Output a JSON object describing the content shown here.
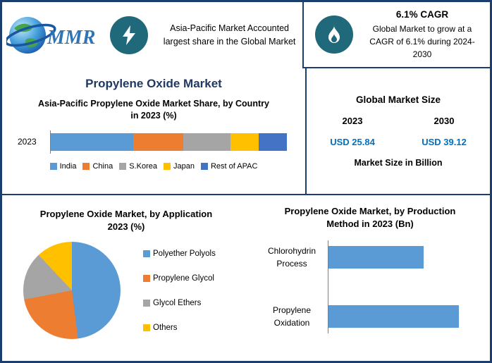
{
  "colors": {
    "border_navy": "#1c3e6e",
    "title_navy": "#1f3864",
    "icon_teal": "#20697a",
    "value_blue": "#0070c0"
  },
  "header": {
    "logo_text": "MMR",
    "highlight_text": "Asia-Pacific Market Accounted largest share in the Global Market",
    "cagr_title": "6.1% CAGR",
    "cagr_text": "Global Market to grow at a CAGR of 6.1% during 2024-2030"
  },
  "title": "Propylene Oxide Market",
  "market_size": {
    "title": "Global Market Size",
    "years": [
      "2023",
      "2030"
    ],
    "values": [
      "USD 25.84",
      "USD 39.12"
    ],
    "unit_label": "Market Size in Billion"
  },
  "chart_data": [
    {
      "type": "bar",
      "subtype": "stacked-horizontal",
      "title": "Asia-Pacific Propylene Oxide Market Share, by Country in 2023 (%)",
      "categories": [
        "2023"
      ],
      "series": [
        {
          "name": "India",
          "color": "#5b9bd5",
          "values": [
            35
          ]
        },
        {
          "name": "China",
          "color": "#ed7d31",
          "values": [
            21
          ]
        },
        {
          "name": "S.Korea",
          "color": "#a5a5a5",
          "values": [
            20
          ]
        },
        {
          "name": "Japan",
          "color": "#ffc000",
          "values": [
            12
          ]
        },
        {
          "name": "Rest of APAC",
          "color": "#4472c4",
          "values": [
            12
          ]
        }
      ],
      "xlim": [
        0,
        100
      ],
      "legend_position": "bottom"
    },
    {
      "type": "pie",
      "title": "Propylene Oxide Market, by Application 2023 (%)",
      "labels": [
        "Polyether Polyols",
        "Propylene Glycol",
        "Glycol Ethers",
        "Others"
      ],
      "values": [
        48,
        24,
        16,
        12
      ],
      "colors": [
        "#5b9bd5",
        "#ed7d31",
        "#a5a5a5",
        "#ffc000"
      ],
      "legend_position": "right"
    },
    {
      "type": "bar",
      "subtype": "horizontal",
      "title": "Propylene Oxide Market, by Production Method in 2023 (Bn)",
      "categories": [
        "Chlorohydrin Process",
        "Propylene Oxidation"
      ],
      "values": [
        10.9,
        14.9
      ],
      "color": "#5b9bd5",
      "xlim": [
        0,
        16
      ]
    }
  ]
}
